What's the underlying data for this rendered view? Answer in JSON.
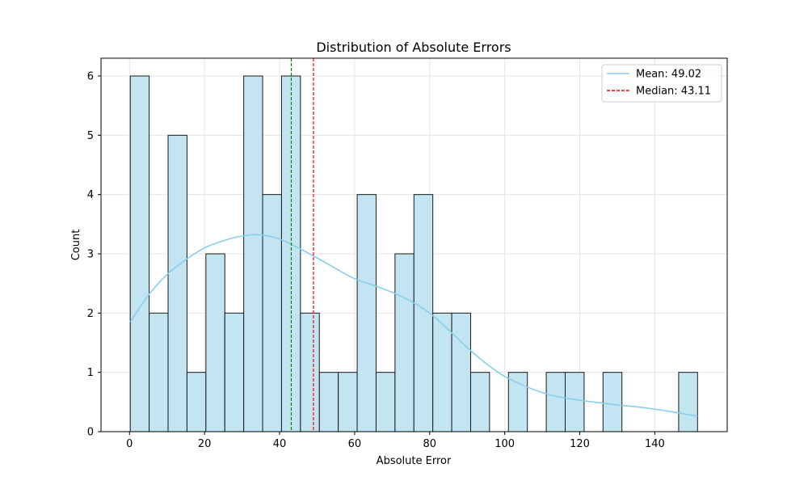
{
  "chart_data": {
    "type": "bar",
    "title": "Distribution of Absolute Errors",
    "xlabel": "Absolute Error",
    "ylabel": "Count",
    "xlim": [
      -7.6,
      159.3
    ],
    "ylim": [
      0,
      6.3
    ],
    "x_ticks": [
      0,
      20,
      40,
      60,
      80,
      100,
      120,
      140
    ],
    "y_ticks": [
      0,
      1,
      2,
      3,
      4,
      5,
      6
    ],
    "grid": true,
    "legend_position": "top-right",
    "bin_start": 0.2,
    "bin_width": 5.04,
    "counts": [
      6,
      2,
      5,
      1,
      3,
      2,
      6,
      4,
      6,
      2,
      1,
      1,
      4,
      1,
      3,
      4,
      2,
      2,
      1,
      0,
      1,
      0,
      1,
      1,
      0,
      1,
      0,
      0,
      0,
      1
    ],
    "kde": {
      "x": [
        0.2,
        5,
        10,
        15,
        20,
        25,
        30,
        35,
        40,
        45,
        50,
        55,
        60,
        65,
        70,
        75,
        80,
        85,
        90,
        95,
        100,
        105,
        110,
        115,
        120,
        125,
        130,
        135,
        140,
        145,
        151.4
      ],
      "y": [
        1.85,
        2.3,
        2.65,
        2.9,
        3.1,
        3.22,
        3.3,
        3.32,
        3.25,
        3.1,
        2.93,
        2.75,
        2.58,
        2.47,
        2.35,
        2.2,
        2.0,
        1.72,
        1.42,
        1.15,
        0.93,
        0.78,
        0.66,
        0.58,
        0.53,
        0.49,
        0.45,
        0.42,
        0.38,
        0.33,
        0.26
      ]
    },
    "lines": {
      "mean": {
        "value": 49.02,
        "label": "Mean: 49.02"
      },
      "median": {
        "value": 43.11,
        "label": "Median: 43.11"
      }
    },
    "colors": {
      "bar_fill": "#c3e5f2",
      "bar_edge": "#1a1a1a",
      "kde": "#87ceeb",
      "mean_line": "#ff0000",
      "median_line": "#008000",
      "grid": "#e5e5e5"
    },
    "legend": [
      {
        "label": "Mean: 49.02",
        "color": "#87ceeb",
        "style": "solid"
      },
      {
        "label": "Median: 43.11",
        "color": "#ff0000",
        "style": "dashed"
      }
    ]
  }
}
